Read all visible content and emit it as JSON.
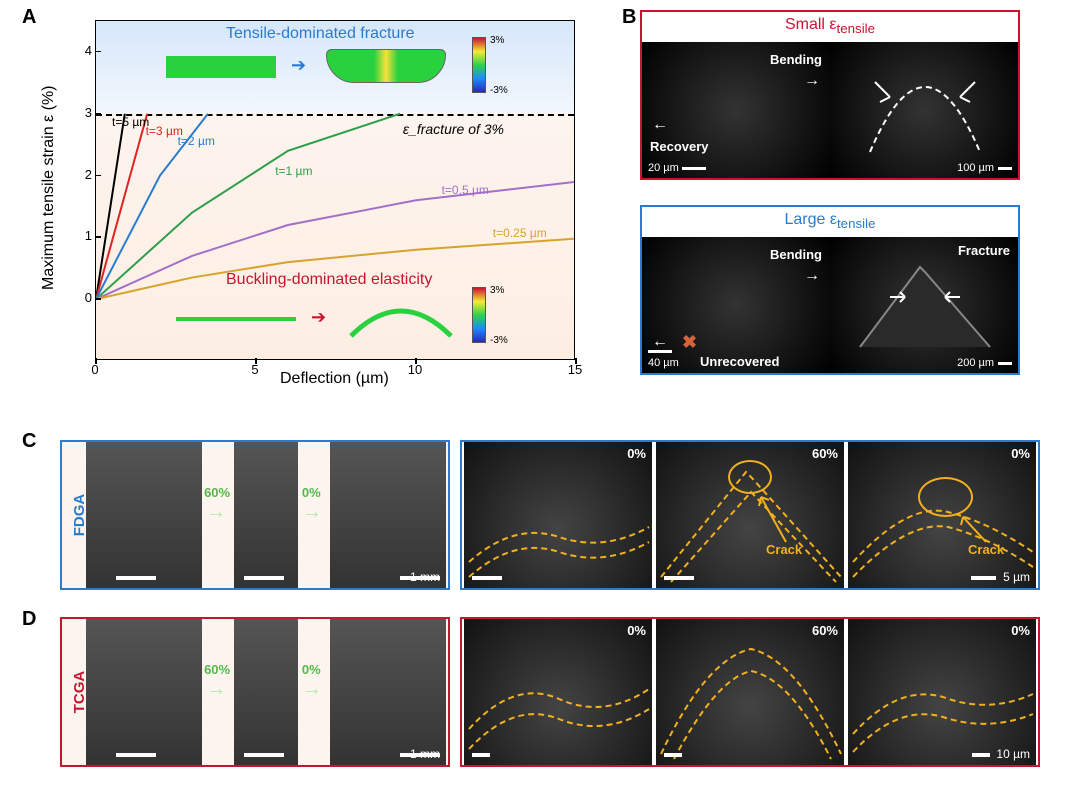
{
  "labels": {
    "A": "A",
    "B": "B",
    "C": "C",
    "D": "D"
  },
  "panelA": {
    "type": "line",
    "title_upper": "Tensile-dominated fracture",
    "title_lower": "Buckling-dominated elasticity",
    "title_upper_color": "#2a7bcf",
    "title_lower_color": "#c8152f",
    "xlabel": "Deflection (µm)",
    "ylabel": "Maximum tensile strain ε (%)",
    "xlim": [
      0,
      15
    ],
    "ylim": [
      -1,
      4.5
    ],
    "ytick_vals": [
      0,
      1,
      2,
      3,
      4
    ],
    "xtick_vals": [
      0,
      5,
      10,
      15
    ],
    "fracture_line_y": 3,
    "fracture_label": "ε_fracture of 3%",
    "label_fontsize": 16,
    "tick_fontsize": 13,
    "curve_label_fontsize": 12,
    "background_upper": "#d6e7fb",
    "background_lower": "#fdeee3",
    "border_color": "#000000",
    "colorbar": {
      "max": "3%",
      "min": "-3%"
    },
    "series": [
      {
        "name": "t=5 µm",
        "color": "#000000",
        "points": [
          [
            0,
            0
          ],
          [
            0.9,
            3
          ]
        ]
      },
      {
        "name": "t=3 µm",
        "color": "#e12222",
        "points": [
          [
            0,
            0
          ],
          [
            1.6,
            3
          ]
        ]
      },
      {
        "name": "t=2 µm",
        "color": "#2a7bcf",
        "points": [
          [
            0,
            0
          ],
          [
            2.0,
            2.0
          ],
          [
            3.5,
            3
          ]
        ]
      },
      {
        "name": "t=1 µm",
        "color": "#2e9e4b",
        "points": [
          [
            0,
            0
          ],
          [
            3,
            1.4
          ],
          [
            6,
            2.4
          ],
          [
            9.5,
            3
          ]
        ]
      },
      {
        "name": "t=0.5 µm",
        "color": "#a46fc8",
        "points": [
          [
            0,
            0
          ],
          [
            3,
            0.7
          ],
          [
            6,
            1.2
          ],
          [
            10,
            1.6
          ],
          [
            15,
            1.9
          ]
        ]
      },
      {
        "name": "t=0.25 µm",
        "color": "#d7a32b",
        "points": [
          [
            0,
            0
          ],
          [
            3,
            0.35
          ],
          [
            6,
            0.6
          ],
          [
            10,
            0.8
          ],
          [
            15,
            0.98
          ]
        ]
      }
    ],
    "curve_label_pos": {
      "t=5 µm": [
        0.5,
        2.85
      ],
      "t=3 µm": [
        1.55,
        2.7
      ],
      "t=2 µm": [
        2.55,
        2.55
      ],
      "t=1 µm": [
        5.6,
        2.05
      ],
      "t=0.5 µm": [
        10.8,
        1.75
      ],
      "t=0.25 µm": [
        12.4,
        1.05
      ]
    }
  },
  "panelB": {
    "top": {
      "title": "Small ε_tensile",
      "border_color": "#c8152f",
      "title_color": "#c8152f",
      "left_img": {
        "text_top": "Bending",
        "text_bot": "Recovery",
        "scale": "20 µm"
      },
      "right_img": {
        "scale": "100 µm"
      }
    },
    "bottom": {
      "title": "Large ε_tensile",
      "border_color": "#2a7bcf",
      "title_color": "#2a7bcf",
      "left_img": {
        "text_top": "Bending",
        "text_bot": "Unrecovered",
        "scale": "40 µm",
        "x_mark": true
      },
      "right_img": {
        "text": "Fracture",
        "scale": "200 µm"
      }
    }
  },
  "panelC": {
    "label": "FDGA",
    "label_color": "#2a7bcf",
    "border_color": "#2a7bcf",
    "macro_pcts": [
      "60%",
      "0%"
    ],
    "macro_scale": "1 mm",
    "micro_pcts": [
      "0%",
      "60%",
      "0%"
    ],
    "micro_scale": "5 µm",
    "crack_label": "Crack"
  },
  "panelD": {
    "label": "TCGA",
    "label_color": "#c8152f",
    "border_color": "#c8152f",
    "macro_pcts": [
      "60%",
      "0%"
    ],
    "macro_scale": "1 mm",
    "micro_pcts": [
      "0%",
      "60%",
      "0%"
    ],
    "micro_scale": "10 µm"
  }
}
